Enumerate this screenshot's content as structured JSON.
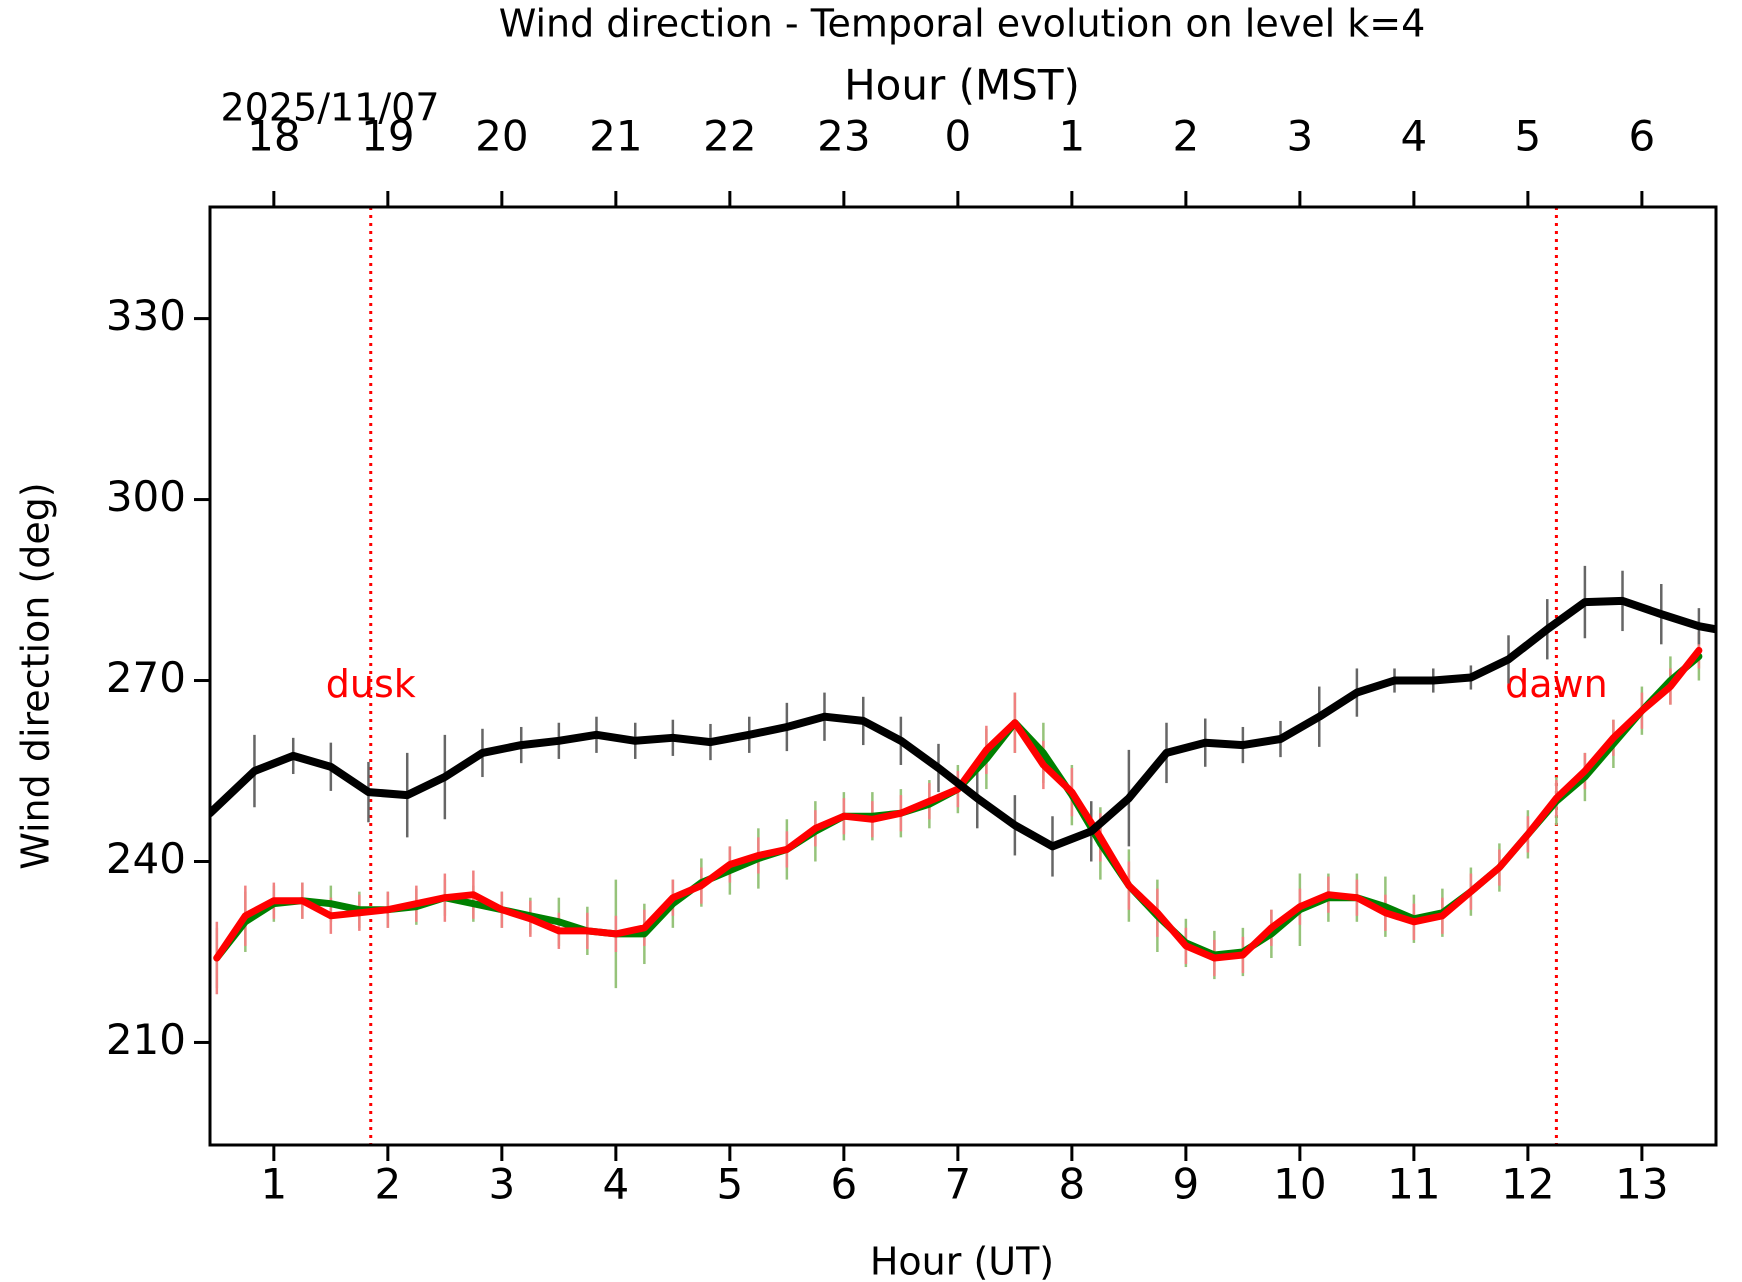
{
  "chart_data": {
    "type": "line",
    "title": "Wind direction - Temporal evolution on level k=4",
    "x_label": "Hour (UT)",
    "y_label": "Wind direction (deg)",
    "x2_label": "Hour (MST)",
    "date_label": "2025/11/07",
    "xlim": [
      0.44,
      13.65
    ],
    "ylim": [
      193,
      348.5
    ],
    "xticks": [
      1,
      2,
      3,
      4,
      5,
      6,
      7,
      8,
      9,
      10,
      11,
      12,
      13
    ],
    "yticks": [
      210,
      240,
      270,
      300,
      330
    ],
    "x2ticks": [
      {
        "value": 1,
        "label": "18"
      },
      {
        "value": 2,
        "label": "19"
      },
      {
        "value": 3,
        "label": "20"
      },
      {
        "value": 4,
        "label": "21"
      },
      {
        "value": 5,
        "label": "22"
      },
      {
        "value": 6,
        "label": "23"
      },
      {
        "value": 7,
        "label": "0"
      },
      {
        "value": 8,
        "label": "1"
      },
      {
        "value": 9,
        "label": "2"
      },
      {
        "value": 10,
        "label": "3"
      },
      {
        "value": 11,
        "label": "4"
      },
      {
        "value": 12,
        "label": "5"
      },
      {
        "value": 13,
        "label": "6"
      }
    ],
    "vlines": [
      {
        "x": 1.85,
        "label": "dusk",
        "y": 269,
        "color": "#ff0000"
      },
      {
        "x": 12.25,
        "label": "dawn",
        "y": 269,
        "color": "#ff0000"
      }
    ],
    "series": [
      {
        "color": "#008000",
        "error_color": "#96c37a",
        "width": 7,
        "x": [
          0.5,
          0.75,
          1.0,
          1.25,
          1.5,
          1.75,
          2.0,
          2.25,
          2.5,
          2.75,
          3.0,
          3.25,
          3.5,
          3.75,
          4.0,
          4.25,
          4.5,
          4.75,
          5.0,
          5.25,
          5.5,
          5.75,
          6.0,
          6.25,
          6.5,
          6.75,
          7.0,
          7.25,
          7.5,
          7.75,
          8.0,
          8.25,
          8.5,
          8.75,
          9.0,
          9.25,
          9.5,
          9.75,
          10.0,
          10.25,
          10.5,
          10.75,
          11.0,
          11.25,
          11.5,
          11.75,
          12.0,
          12.25,
          12.5,
          12.75,
          13.0,
          13.25,
          13.5
        ],
        "values": [
          224,
          230,
          233,
          233.5,
          233,
          232,
          232,
          232.5,
          234,
          233,
          232,
          231,
          230,
          228.5,
          228,
          228,
          233,
          236.5,
          238.5,
          240.5,
          242,
          245,
          247.5,
          247.5,
          248,
          249.5,
          252,
          257,
          263,
          258,
          251,
          243,
          236,
          231,
          226.5,
          224.5,
          225,
          228,
          232,
          234,
          234,
          232.5,
          230.5,
          231.5,
          235,
          239,
          244.5,
          250,
          254,
          259.5,
          265,
          270,
          274
        ],
        "errors": [
          5,
          5,
          3,
          3,
          3,
          3,
          3,
          3,
          3,
          3,
          3,
          3,
          4,
          4,
          9,
          5,
          4,
          4,
          4,
          5,
          5,
          5,
          4,
          4,
          4,
          4,
          4,
          5,
          5,
          5,
          5,
          6,
          6,
          6,
          4,
          4,
          4,
          4,
          6,
          4,
          4,
          5,
          4,
          4,
          4,
          4,
          4,
          4,
          4,
          4,
          4,
          4,
          4
        ]
      },
      {
        "color": "#ff0000",
        "error_color": "#f08080",
        "width": 7,
        "x": [
          0.5,
          0.75,
          1.0,
          1.25,
          1.5,
          1.75,
          2.0,
          2.25,
          2.5,
          2.75,
          3.0,
          3.25,
          3.5,
          3.75,
          4.0,
          4.25,
          4.5,
          4.75,
          5.0,
          5.25,
          5.5,
          5.75,
          6.0,
          6.25,
          6.5,
          6.75,
          7.0,
          7.25,
          7.5,
          7.75,
          8.0,
          8.25,
          8.5,
          8.75,
          9.0,
          9.25,
          9.5,
          9.75,
          10.0,
          10.25,
          10.5,
          10.75,
          11.0,
          11.25,
          11.5,
          11.75,
          12.0,
          12.25,
          12.5,
          12.75,
          13.0,
          13.25,
          13.5
        ],
        "values": [
          224,
          231,
          233.5,
          233.5,
          231,
          231.5,
          232,
          233,
          234,
          234.5,
          232,
          230.5,
          228.5,
          228.5,
          228,
          229,
          234,
          236,
          239.5,
          241,
          242,
          245.5,
          247.5,
          247,
          248,
          250,
          252,
          258.5,
          263,
          256,
          251.5,
          244,
          236,
          231.5,
          226,
          224,
          224.5,
          229,
          232.5,
          234.5,
          234,
          231.5,
          230,
          231,
          235,
          239,
          244.5,
          250.5,
          255,
          260.5,
          265,
          269,
          275
        ],
        "errors": [
          6,
          5,
          3,
          3,
          3,
          3,
          3,
          3,
          4,
          4,
          3,
          3,
          3,
          3,
          3,
          3,
          3,
          3,
          3,
          3,
          3,
          3,
          3,
          3,
          3,
          3,
          3,
          4,
          5,
          4,
          4,
          4,
          4,
          4,
          3,
          3,
          3,
          3,
          3,
          3,
          3,
          3,
          3,
          3,
          3,
          3,
          3,
          3,
          3,
          3,
          3,
          3,
          3
        ]
      },
      {
        "color": "#000000",
        "error_color": "#666666",
        "width": 8,
        "x": [
          0.44,
          0.83,
          1.17,
          1.5,
          1.83,
          2.17,
          2.5,
          2.83,
          3.17,
          3.5,
          3.83,
          4.17,
          4.5,
          4.83,
          5.17,
          5.5,
          5.83,
          6.17,
          6.5,
          6.83,
          7.17,
          7.5,
          7.83,
          8.17,
          8.5,
          8.83,
          9.17,
          9.5,
          9.83,
          10.17,
          10.5,
          10.83,
          11.17,
          11.5,
          11.83,
          12.17,
          12.5,
          12.83,
          13.17,
          13.5,
          13.65
        ],
        "values": [
          248,
          255,
          257.5,
          255.7,
          251.5,
          251,
          254,
          258,
          259.3,
          260,
          261,
          260,
          260.5,
          259.8,
          261,
          262.3,
          264,
          263.3,
          260,
          255.5,
          250.5,
          246,
          242.5,
          245,
          250.5,
          258,
          259.7,
          259.3,
          260.3,
          264,
          268,
          270,
          270,
          270.5,
          273.5,
          278.5,
          283,
          283.2,
          281,
          279,
          278.5
        ],
        "errors": [
          7,
          6,
          3,
          4,
          5,
          7,
          7,
          4,
          3,
          3,
          3,
          3,
          3,
          3,
          3,
          4,
          4,
          4,
          4,
          4,
          5,
          5,
          5,
          5,
          8,
          5,
          4,
          3,
          3,
          5,
          4,
          2,
          2,
          2,
          4,
          5,
          6,
          5,
          5,
          3,
          null
        ]
      }
    ]
  }
}
